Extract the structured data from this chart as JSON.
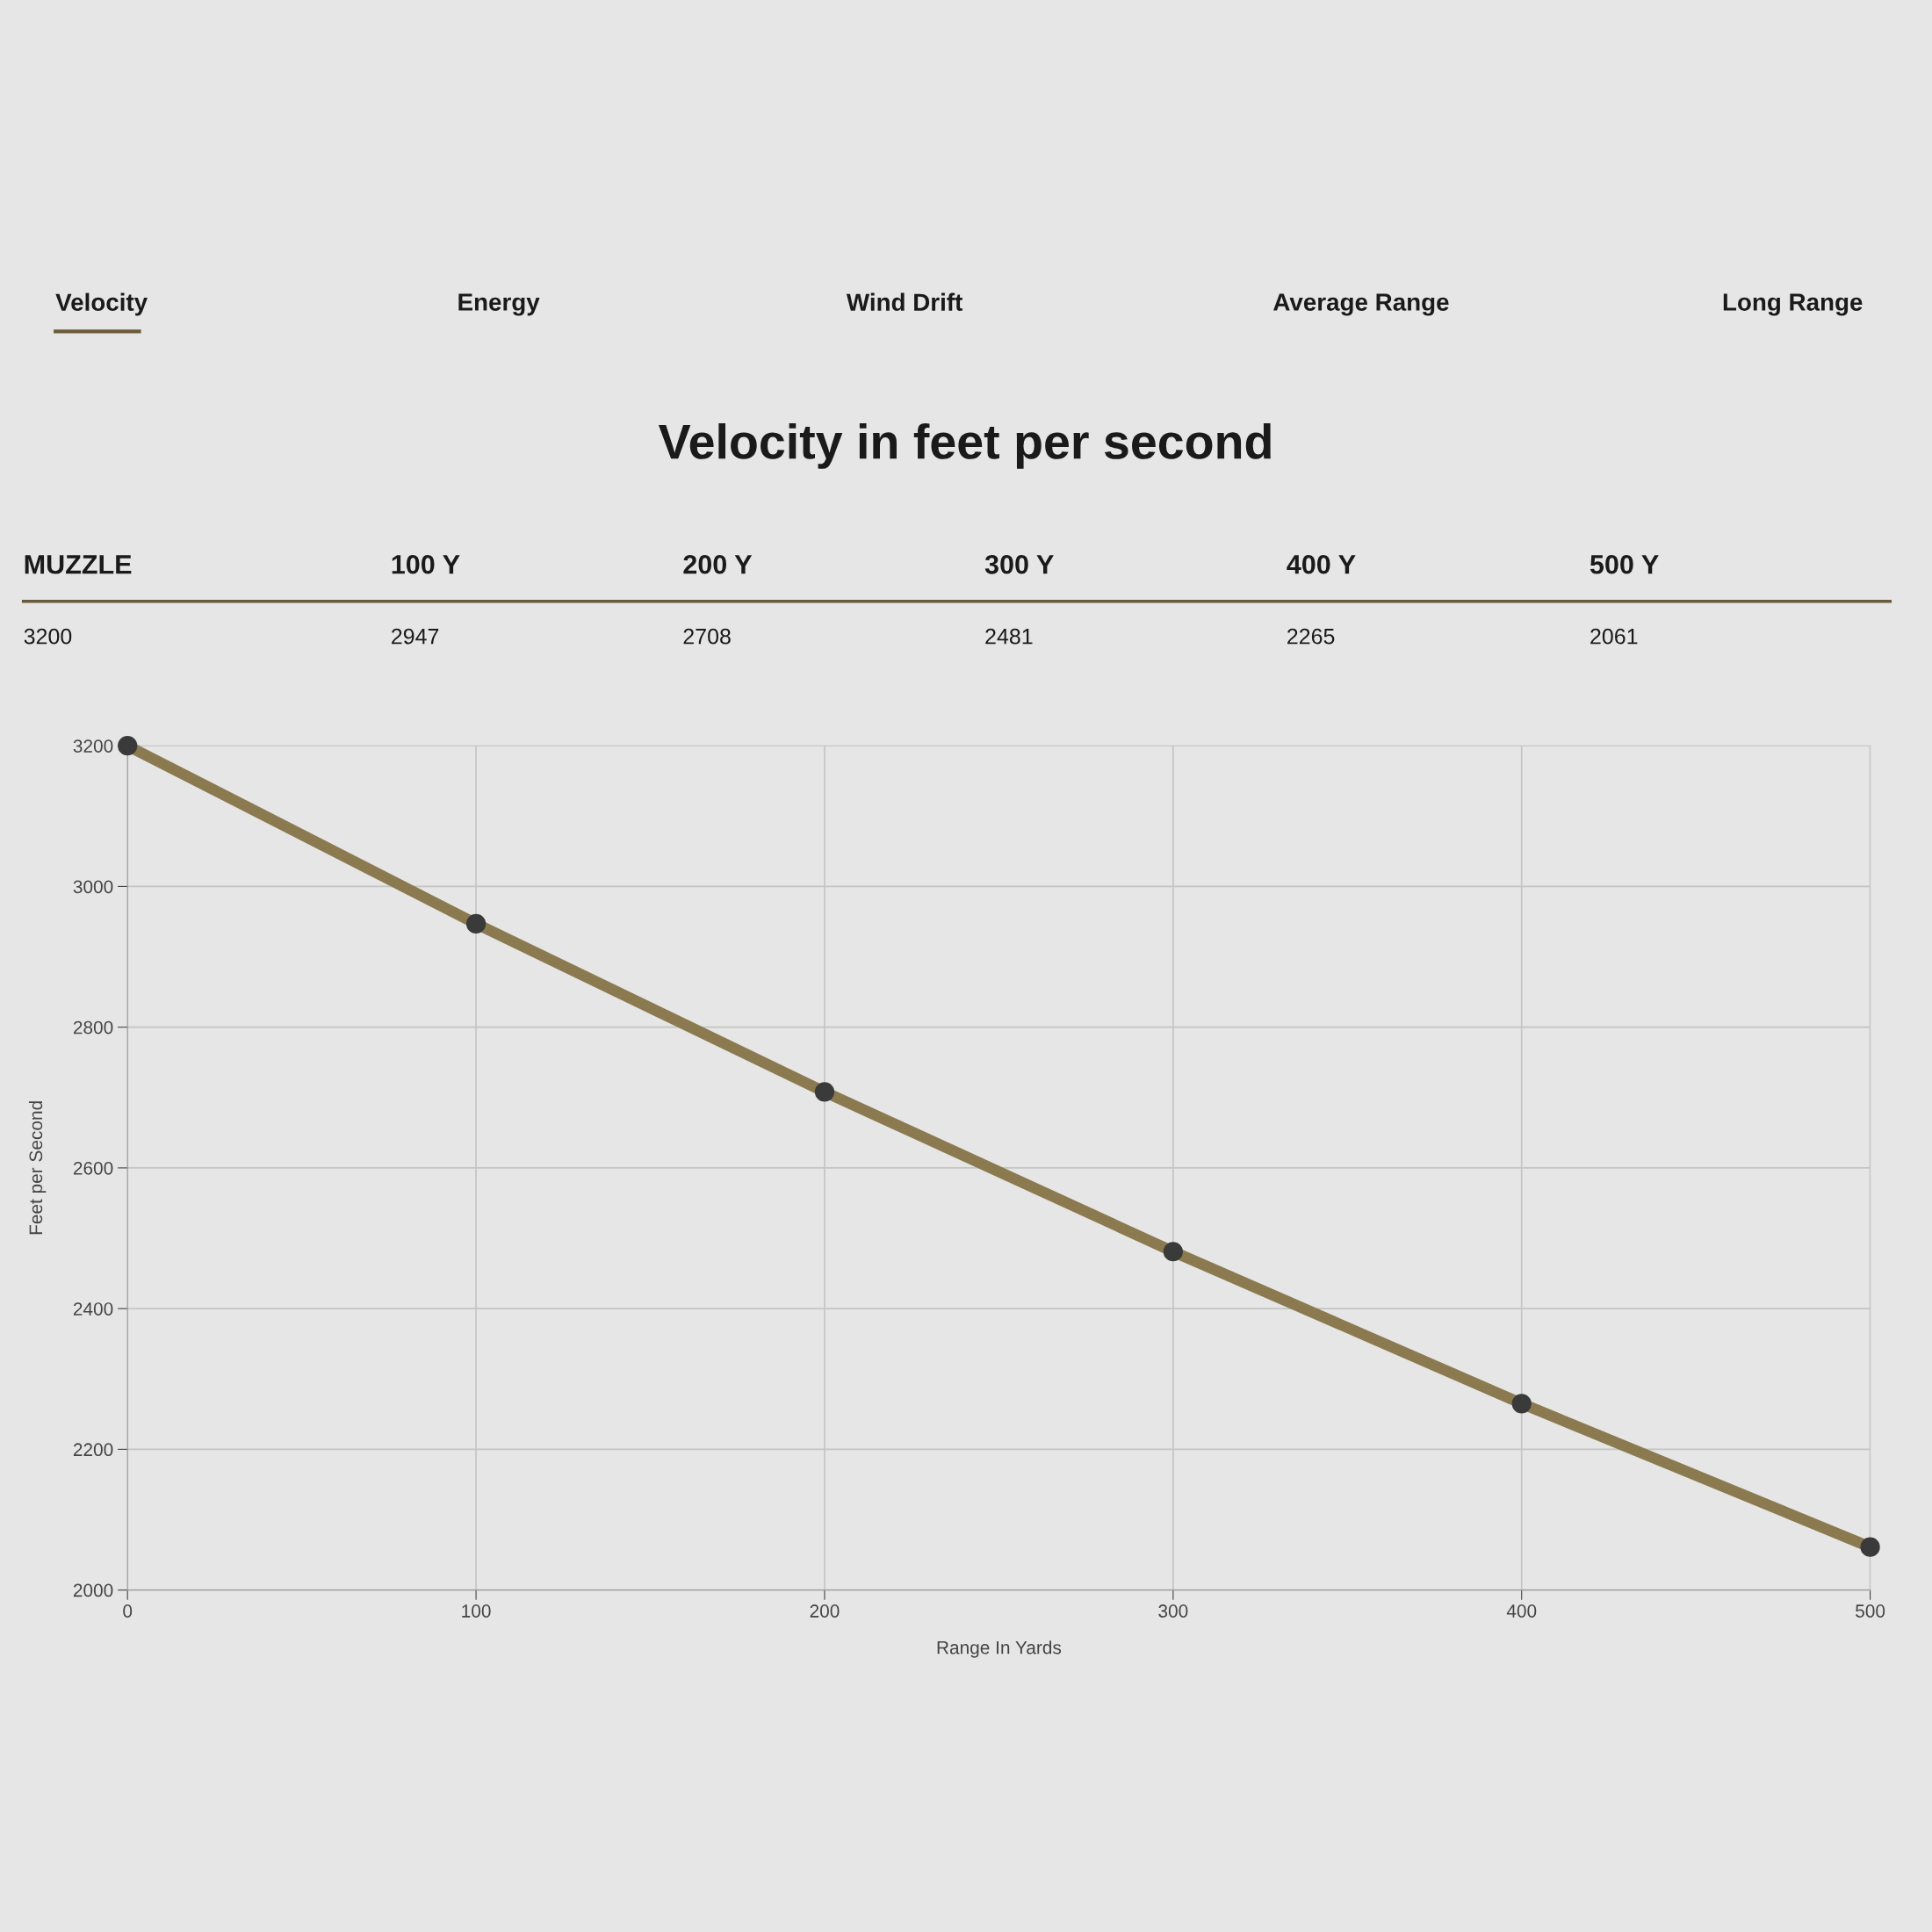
{
  "chart_data": {
    "type": "line",
    "title": "Velocity in feet per second",
    "xlabel": "Range In Yards",
    "ylabel": "Feet per Second",
    "x": [
      0,
      100,
      200,
      300,
      400,
      500
    ],
    "series": [
      {
        "color": "#8b7a50",
        "values": [
          3200,
          2947,
          2708,
          2481,
          2265,
          2061
        ]
      }
    ],
    "xlim": [
      0,
      500
    ],
    "xticks": [
      0,
      100,
      200,
      300,
      400,
      500
    ],
    "ylim": [
      2000,
      3200
    ],
    "yticks": [
      2000,
      2200,
      2400,
      2600,
      2800,
      3000,
      3200
    ],
    "grid": true,
    "marker": "circle",
    "line_style": "solid",
    "legend": false,
    "annotations": [
      "Velocity",
      "Energy",
      "Wind Drift",
      "Average Range",
      "Long Range",
      "MUZZLE",
      "100 Y",
      "200 Y",
      "300 Y",
      "400 Y",
      "500 Y",
      "3200",
      "2947",
      "2708",
      "2481",
      "2265",
      "2061"
    ]
  }
}
